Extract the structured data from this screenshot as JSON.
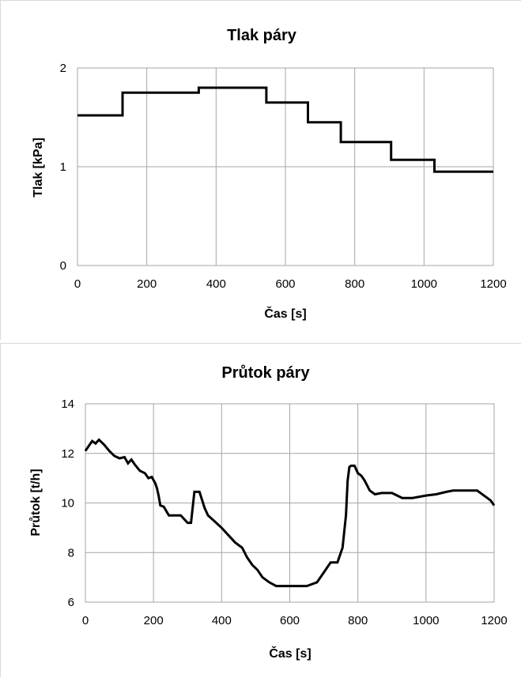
{
  "chart_data": [
    {
      "type": "line",
      "title": "Tlak páry",
      "xlabel": "Čas [s]",
      "ylabel": "Tlak [kPa]",
      "xlim": [
        0,
        1200
      ],
      "ylim": [
        0,
        2
      ],
      "xticks": [
        0,
        200,
        400,
        600,
        800,
        1000,
        1200
      ],
      "yticks": [
        0,
        1,
        2
      ],
      "grid": true,
      "legend": "none",
      "step": true,
      "series": [
        {
          "color": "#000000",
          "x": [
            0,
            130,
            130,
            350,
            350,
            545,
            545,
            665,
            665,
            760,
            760,
            905,
            905,
            1030,
            1030,
            1200
          ],
          "y": [
            1.52,
            1.52,
            1.75,
            1.75,
            1.8,
            1.8,
            1.65,
            1.65,
            1.45,
            1.45,
            1.25,
            1.25,
            1.07,
            1.07,
            0.95,
            0.95
          ]
        }
      ]
    },
    {
      "type": "line",
      "title": "Průtok páry",
      "xlabel": "Čas [s]",
      "ylabel": "Průtok [t/h]",
      "xlim": [
        0,
        1200
      ],
      "ylim": [
        6,
        14
      ],
      "xticks": [
        0,
        200,
        400,
        600,
        800,
        1000,
        1200
      ],
      "yticks": [
        6,
        8,
        10,
        12,
        14
      ],
      "grid": true,
      "legend": "none",
      "series": [
        {
          "color": "#000000",
          "x": [
            0,
            10,
            20,
            30,
            40,
            55,
            70,
            85,
            100,
            115,
            125,
            135,
            145,
            160,
            175,
            185,
            195,
            205,
            210,
            215,
            220,
            230,
            245,
            260,
            280,
            300,
            310,
            320,
            325,
            335,
            350,
            360,
            380,
            400,
            420,
            440,
            460,
            475,
            490,
            505,
            520,
            540,
            560,
            575,
            600,
            625,
            650,
            680,
            700,
            720,
            740,
            755,
            765,
            770,
            775,
            780,
            790,
            800,
            810,
            820,
            835,
            850,
            870,
            900,
            930,
            960,
            1000,
            1030,
            1060,
            1080,
            1100,
            1130,
            1150,
            1170,
            1180,
            1190,
            1200
          ],
          "y": [
            12.1,
            12.3,
            12.5,
            12.4,
            12.55,
            12.35,
            12.1,
            11.9,
            11.8,
            11.85,
            11.6,
            11.75,
            11.55,
            11.3,
            11.2,
            11.0,
            11.05,
            10.8,
            10.6,
            10.3,
            9.9,
            9.85,
            9.5,
            9.5,
            9.5,
            9.2,
            9.2,
            10.45,
            10.45,
            10.45,
            9.8,
            9.5,
            9.25,
            9.0,
            8.7,
            8.4,
            8.2,
            7.8,
            7.5,
            7.3,
            7.0,
            6.8,
            6.65,
            6.65,
            6.65,
            6.65,
            6.65,
            6.8,
            7.2,
            7.6,
            7.6,
            8.2,
            9.5,
            10.9,
            11.45,
            11.5,
            11.5,
            11.2,
            11.1,
            10.9,
            10.5,
            10.35,
            10.4,
            10.4,
            10.2,
            10.2,
            10.3,
            10.35,
            10.45,
            10.5,
            10.5,
            10.5,
            10.5,
            10.3,
            10.2,
            10.1,
            9.9
          ]
        }
      ]
    }
  ]
}
